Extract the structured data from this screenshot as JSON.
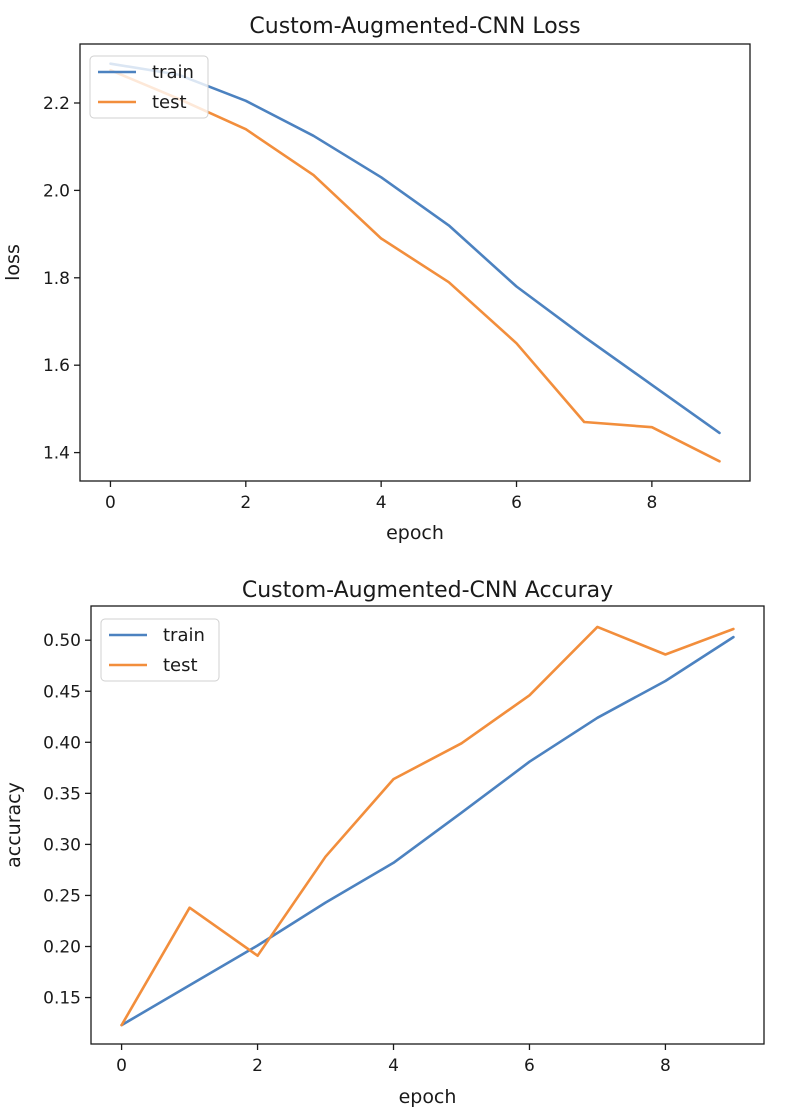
{
  "chart_data": [
    {
      "type": "line",
      "title": "Custom-Augmented-CNN Loss",
      "xlabel": "epoch",
      "ylabel": "loss",
      "x": [
        0,
        1,
        2,
        3,
        4,
        5,
        6,
        7,
        8,
        9
      ],
      "xticks": [
        "0",
        "2",
        "4",
        "6",
        "8"
      ],
      "yticks": [
        "1.4",
        "1.6",
        "1.8",
        "2.0",
        "2.2"
      ],
      "xlim": [
        -0.45,
        9.45
      ],
      "ylim": [
        1.335,
        2.335
      ],
      "grid": false,
      "legend": "top-left",
      "series": [
        {
          "name": "train",
          "color": "#4c82c0",
          "values": [
            2.29,
            2.265,
            2.205,
            2.125,
            2.03,
            1.92,
            1.78,
            1.665,
            1.555,
            1.445
          ]
        },
        {
          "name": "test",
          "color": "#f28e3c",
          "values": [
            2.275,
            2.21,
            2.14,
            2.035,
            1.89,
            1.79,
            1.65,
            1.47,
            1.458,
            1.38
          ]
        }
      ]
    },
    {
      "type": "line",
      "title": "Custom-Augmented-CNN Accuray",
      "xlabel": "epoch",
      "ylabel": "accuracy",
      "x": [
        0,
        1,
        2,
        3,
        4,
        5,
        6,
        7,
        8,
        9
      ],
      "xticks": [
        "0",
        "2",
        "4",
        "6",
        "8"
      ],
      "yticks": [
        "0.15",
        "0.20",
        "0.25",
        "0.30",
        "0.35",
        "0.40",
        "0.45",
        "0.50"
      ],
      "xlim": [
        -0.45,
        9.45
      ],
      "ylim": [
        0.1045,
        0.5335
      ],
      "grid": false,
      "legend": "top-left",
      "series": [
        {
          "name": "train",
          "color": "#4c82c0",
          "values": [
            0.123,
            0.162,
            0.201,
            0.243,
            0.282,
            0.331,
            0.381,
            0.424,
            0.46,
            0.503
          ]
        },
        {
          "name": "test",
          "color": "#f28e3c",
          "values": [
            0.123,
            0.238,
            0.191,
            0.288,
            0.364,
            0.399,
            0.446,
            0.513,
            0.486,
            0.511
          ]
        }
      ]
    }
  ]
}
